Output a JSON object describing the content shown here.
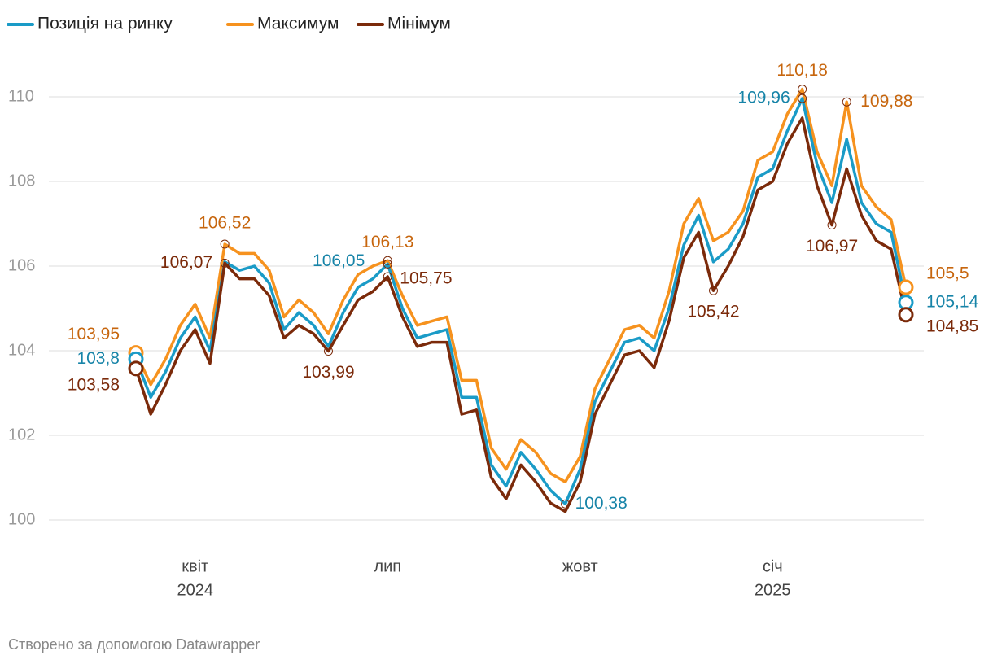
{
  "chart_data": {
    "type": "line",
    "legend_position": "top-left",
    "grid": true,
    "footer": "Створено за допомогою Datawrapper",
    "categories": [
      null,
      null,
      null,
      null,
      "квіт",
      null,
      null,
      null,
      null,
      null,
      null,
      null,
      null,
      null,
      null,
      null,
      null,
      "лип",
      null,
      null,
      null,
      null,
      null,
      null,
      null,
      null,
      null,
      null,
      null,
      null,
      "жовт",
      null,
      null,
      null,
      null,
      null,
      null,
      null,
      null,
      null,
      null,
      null,
      null,
      "січ",
      null,
      null,
      null,
      null,
      null,
      null,
      null,
      null,
      null
    ],
    "category_years": [
      null,
      null,
      null,
      null,
      "2024",
      null,
      null,
      null,
      null,
      null,
      null,
      null,
      null,
      null,
      null,
      null,
      null,
      null,
      null,
      null,
      null,
      null,
      null,
      null,
      null,
      null,
      null,
      null,
      null,
      null,
      null,
      null,
      null,
      null,
      null,
      null,
      null,
      null,
      null,
      null,
      null,
      null,
      null,
      "2025",
      null,
      null,
      null,
      null,
      null,
      null,
      null,
      null,
      null
    ],
    "ylim": [
      99,
      111
    ],
    "yticks": [
      100,
      102,
      104,
      106,
      108,
      110
    ],
    "series": [
      {
        "name": "Максимум",
        "color": "#f6921e",
        "label_color": "#c7660e",
        "values": [
          103.95,
          103.2,
          103.8,
          104.6,
          105.1,
          104.3,
          106.52,
          106.3,
          106.3,
          105.9,
          104.8,
          105.2,
          104.9,
          104.4,
          105.2,
          105.8,
          106.0,
          106.13,
          105.3,
          104.6,
          104.7,
          104.8,
          103.3,
          103.3,
          101.7,
          101.2,
          101.9,
          101.6,
          101.1,
          100.9,
          101.5,
          103.1,
          103.8,
          104.5,
          104.6,
          104.3,
          105.4,
          107.0,
          107.6,
          106.6,
          106.8,
          107.3,
          108.5,
          108.7,
          109.6,
          110.18,
          108.7,
          107.9,
          109.88,
          107.9,
          107.4,
          107.1,
          105.5
        ],
        "value_labels": [
          "103,95",
          null,
          null,
          null,
          null,
          null,
          "106,52",
          null,
          null,
          null,
          null,
          null,
          null,
          null,
          null,
          null,
          null,
          "106,13",
          null,
          null,
          null,
          null,
          null,
          null,
          null,
          null,
          null,
          null,
          null,
          null,
          null,
          null,
          null,
          null,
          null,
          null,
          null,
          null,
          null,
          null,
          null,
          null,
          null,
          null,
          null,
          "110,18",
          null,
          null,
          "109,88",
          null,
          null,
          null,
          "105,5"
        ]
      },
      {
        "name": "Позиція на ринку",
        "color": "#1a9bc7",
        "label_color": "#1784a8",
        "values": [
          103.8,
          102.9,
          103.5,
          104.3,
          104.8,
          104.0,
          106.1,
          105.9,
          106.0,
          105.6,
          104.5,
          104.9,
          104.6,
          104.1,
          104.9,
          105.5,
          105.7,
          106.05,
          105.0,
          104.3,
          104.4,
          104.5,
          102.9,
          102.9,
          101.3,
          100.8,
          101.6,
          101.2,
          100.7,
          100.38,
          101.2,
          102.8,
          103.5,
          104.2,
          104.3,
          104.0,
          105.0,
          106.5,
          107.2,
          106.1,
          106.4,
          107.0,
          108.1,
          108.3,
          109.2,
          109.96,
          108.4,
          107.5,
          109.0,
          107.5,
          107.0,
          106.8,
          105.14
        ],
        "value_labels": [
          "103,8",
          null,
          null,
          null,
          null,
          null,
          null,
          null,
          null,
          null,
          null,
          null,
          null,
          null,
          null,
          null,
          null,
          "106,05",
          null,
          null,
          null,
          null,
          null,
          null,
          null,
          null,
          null,
          null,
          null,
          "100,38",
          null,
          null,
          null,
          null,
          null,
          null,
          null,
          null,
          null,
          null,
          null,
          null,
          null,
          null,
          null,
          "109,96",
          null,
          null,
          null,
          null,
          null,
          null,
          "105,14"
        ]
      },
      {
        "name": "Мінімум",
        "color": "#7b2a0a",
        "label_color": "#7b2a0a",
        "values": [
          103.58,
          102.5,
          103.2,
          104.0,
          104.5,
          103.7,
          106.07,
          105.7,
          105.7,
          105.3,
          104.3,
          104.6,
          104.4,
          103.99,
          104.6,
          105.2,
          105.4,
          105.75,
          104.8,
          104.1,
          104.2,
          104.2,
          102.5,
          102.6,
          101.0,
          100.5,
          101.3,
          100.9,
          100.4,
          100.2,
          100.9,
          102.5,
          103.2,
          103.9,
          104.0,
          103.6,
          104.7,
          106.2,
          106.8,
          105.42,
          106.0,
          106.7,
          107.8,
          108.0,
          108.9,
          109.5,
          107.9,
          106.97,
          108.3,
          107.2,
          106.6,
          106.4,
          104.85
        ],
        "value_labels": [
          "103,58",
          null,
          null,
          null,
          null,
          null,
          "106,07",
          null,
          null,
          null,
          null,
          null,
          null,
          "103,99",
          null,
          null,
          null,
          "105,75",
          null,
          null,
          null,
          null,
          null,
          null,
          null,
          null,
          null,
          null,
          null,
          null,
          null,
          null,
          null,
          null,
          null,
          null,
          null,
          null,
          null,
          "105,42",
          null,
          null,
          null,
          null,
          null,
          null,
          null,
          "106,97",
          null,
          null,
          null,
          null,
          "104,85"
        ]
      }
    ]
  }
}
